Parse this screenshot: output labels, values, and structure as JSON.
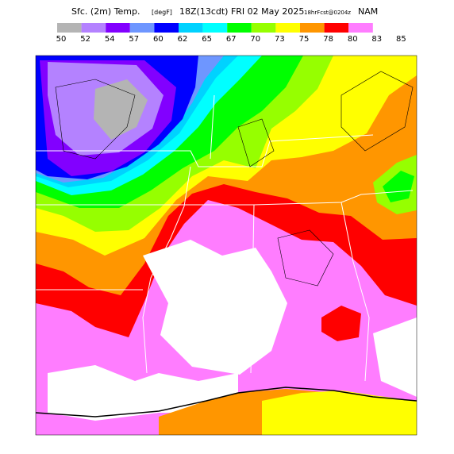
{
  "title": {
    "parts": [
      "Sfc. (2m) Temp.",
      "[degF]",
      "18Z(13cdt) FRI 02 May 2025",
      "18hrFcst@0204z",
      "NAM"
    ]
  },
  "colorbar": {
    "labels": [
      50,
      52,
      54,
      57,
      60,
      62,
      65,
      67,
      70,
      73,
      75,
      78,
      80,
      83,
      85
    ],
    "colors": [
      "#b4b4b4",
      "#b482ff",
      "#8200ff",
      "#6e96ff",
      "#0000ff",
      "#00d2ff",
      "#00ffff",
      "#00ff00",
      "#96ff00",
      "#ffff00",
      "#ff9600",
      "#ff0000",
      "#ff7dff"
    ]
  }
}
